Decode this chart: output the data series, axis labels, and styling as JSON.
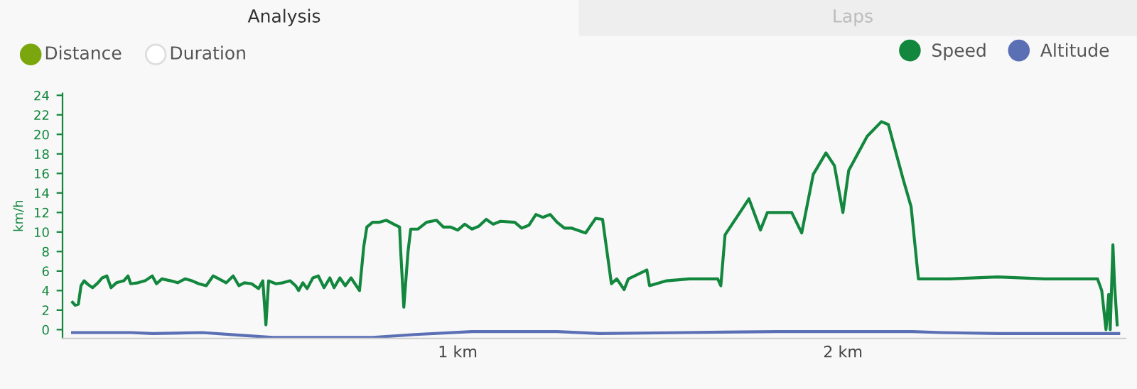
{
  "chart_data": {
    "type": "line",
    "ylabel": "km/h",
    "annotations": [
      "Analysis",
      "Laps",
      "Distance",
      "Duration"
    ],
    "xlim": [
      -0.026,
      2.734
    ],
    "xticks": [
      {
        "value": 1,
        "label": "1 km"
      },
      {
        "value": 2,
        "label": "2 km"
      }
    ],
    "ylim": [
      -0.9,
      24.2
    ],
    "yticks": [
      0,
      2,
      4,
      6,
      8,
      10,
      12,
      14,
      16,
      18,
      20,
      22,
      24
    ],
    "grid": false,
    "legend": "top right",
    "marker": "none",
    "line_style": "solid",
    "series": [
      {
        "name": "Speed",
        "color": "#12873d",
        "x": [
          0,
          0.007,
          0.015,
          0.022,
          0.03,
          0.041,
          0.052,
          0.066,
          0.077,
          0.089,
          0.1,
          0.114,
          0.133,
          0.144,
          0.151,
          0.17,
          0.188,
          0.207,
          0.218,
          0.232,
          0.255,
          0.273,
          0.292,
          0.31,
          0.328,
          0.347,
          0.365,
          0.38,
          0.399,
          0.417,
          0.432,
          0.446,
          0.465,
          0.483,
          0.494,
          0.502,
          0.509,
          0.528,
          0.546,
          0.565,
          0.579,
          0.587,
          0.598,
          0.609,
          0.624,
          0.638,
          0.653,
          0.668,
          0.679,
          0.694,
          0.708,
          0.723,
          0.745,
          0.756,
          0.764,
          0.779,
          0.797,
          0.815,
          0.834,
          0.849,
          0.852,
          0.86,
          0.871,
          0.878,
          0.897,
          0.919,
          0.945,
          0.963,
          0.982,
          1.0,
          1.018,
          1.037,
          1.055,
          1.074,
          1.092,
          1.111,
          1.148,
          1.166,
          1.185,
          1.203,
          1.221,
          1.24,
          1.258,
          1.277,
          1.295,
          1.332,
          1.358,
          1.376,
          1.399,
          1.413,
          1.432,
          1.443,
          1.491,
          1.498,
          1.542,
          1.601,
          1.675,
          1.683,
          1.694,
          1.731,
          1.756,
          1.786,
          1.804,
          1.867,
          1.893,
          1.923,
          1.956,
          1.978,
          2.0,
          2.015,
          2.063,
          2.1,
          2.118,
          2.155,
          2.177,
          2.196,
          2.277,
          2.402,
          2.524,
          2.661,
          2.672,
          2.683,
          2.69,
          2.694,
          2.701,
          2.705,
          2.712
        ],
        "values": [
          2.8,
          2.5,
          2.6,
          4.5,
          5.0,
          4.6,
          4.3,
          4.8,
          5.3,
          5.5,
          4.3,
          4.8,
          5.0,
          5.5,
          4.7,
          4.8,
          5.0,
          5.5,
          4.7,
          5.2,
          5.0,
          4.8,
          5.2,
          5.0,
          4.7,
          4.5,
          5.5,
          5.2,
          4.8,
          5.5,
          4.5,
          4.8,
          4.7,
          4.2,
          5.0,
          0.5,
          5.0,
          4.7,
          4.8,
          5.0,
          4.5,
          4.0,
          4.8,
          4.2,
          5.3,
          5.5,
          4.3,
          5.3,
          4.3,
          5.3,
          4.5,
          5.3,
          4.0,
          8.5,
          10.5,
          11.0,
          11.0,
          11.2,
          10.8,
          10.5,
          8.0,
          2.3,
          8.0,
          10.3,
          10.3,
          11.0,
          11.2,
          10.5,
          10.5,
          10.2,
          10.8,
          10.3,
          10.6,
          11.3,
          10.8,
          11.1,
          11.0,
          10.4,
          10.7,
          11.8,
          11.5,
          11.8,
          11.0,
          10.4,
          10.4,
          9.9,
          11.4,
          11.3,
          4.7,
          5.2,
          4.1,
          5.2,
          6.1,
          4.5,
          5.0,
          5.2,
          5.2,
          4.5,
          9.7,
          11.9,
          13.4,
          10.2,
          12.0,
          12.0,
          9.9,
          15.9,
          18.1,
          16.8,
          12.0,
          16.3,
          19.8,
          21.3,
          21.0,
          15.6,
          12.6,
          5.2,
          5.2,
          5.4,
          5.2,
          5.2,
          4.0,
          0.0,
          3.6,
          0.0,
          8.7,
          4.8,
          0.5
        ]
      },
      {
        "name": "Altitude",
        "type": "line",
        "color": "#5b6fb5",
        "x": [
          0,
          0.151,
          0.207,
          0.336,
          0.446,
          0.52,
          0.779,
          0.889,
          1.037,
          1.258,
          1.369,
          1.59,
          1.83,
          2.181,
          2.255,
          2.402,
          2.716
        ],
        "values": [
          -0.3,
          -0.3,
          -0.4,
          -0.3,
          -0.6,
          -0.8,
          -0.8,
          -0.5,
          -0.2,
          -0.2,
          -0.4,
          -0.3,
          -0.2,
          -0.2,
          -0.3,
          -0.4,
          -0.4
        ]
      }
    ]
  }
}
